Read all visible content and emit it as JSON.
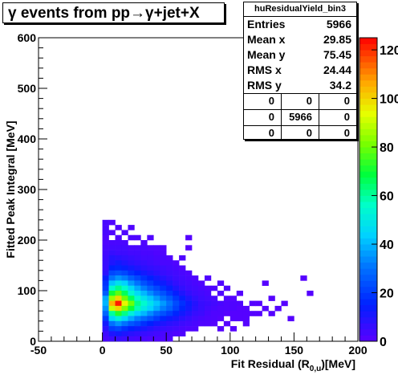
{
  "title": "γ events from pp→γ+jet+X",
  "stats": {
    "name": "huResidualYield_bin3",
    "rows": [
      {
        "label": "Entries",
        "value": "5966"
      },
      {
        "label": "Mean x",
        "value": "29.85"
      },
      {
        "label": "Mean y",
        "value": "75.45"
      },
      {
        "label": "RMS x",
        "value": "24.44"
      },
      {
        "label": "RMS y",
        "value": "34.2"
      }
    ],
    "grid": [
      [
        "0",
        "0",
        "0"
      ],
      [
        "0",
        "5966",
        "0"
      ],
      [
        "0",
        "0",
        "0"
      ]
    ]
  },
  "chart_data": {
    "type": "heatmap",
    "title": "γ events from pp→γ+jet+X",
    "xlabel": "Fit Residual (R0,u)[MeV]",
    "ylabel": "Fitted Peak Integral [MeV]",
    "xlim": [
      -50,
      200
    ],
    "ylim": [
      0,
      600
    ],
    "x_ticks": [
      -50,
      0,
      50,
      100,
      150,
      200
    ],
    "y_ticks": [
      0,
      100,
      200,
      300,
      400,
      500,
      600
    ],
    "zlim": [
      0,
      125
    ],
    "z_ticks": [
      0,
      20,
      40,
      60,
      80,
      100,
      120
    ],
    "bin_width_x": 5,
    "bin_width_y": 10,
    "bins": [
      [
        0,
        230,
        3
      ],
      [
        0,
        220,
        3
      ],
      [
        0,
        210,
        3
      ],
      [
        0,
        200,
        2
      ],
      [
        0,
        190,
        2
      ],
      [
        0,
        180,
        3
      ],
      [
        0,
        170,
        4
      ],
      [
        0,
        160,
        5
      ],
      [
        0,
        150,
        6
      ],
      [
        0,
        140,
        6
      ],
      [
        0,
        130,
        8
      ],
      [
        0,
        120,
        14
      ],
      [
        0,
        110,
        18
      ],
      [
        0,
        100,
        20
      ],
      [
        0,
        90,
        26
      ],
      [
        0,
        80,
        38
      ],
      [
        0,
        70,
        40
      ],
      [
        0,
        60,
        35
      ],
      [
        0,
        50,
        28
      ],
      [
        0,
        40,
        20
      ],
      [
        0,
        30,
        12
      ],
      [
        0,
        20,
        8
      ],
      [
        0,
        10,
        5
      ],
      [
        0,
        0,
        3
      ],
      [
        5,
        230,
        2
      ],
      [
        5,
        210,
        2
      ],
      [
        5,
        190,
        3
      ],
      [
        5,
        180,
        4
      ],
      [
        5,
        170,
        6
      ],
      [
        5,
        160,
        9
      ],
      [
        5,
        150,
        10
      ],
      [
        5,
        140,
        15
      ],
      [
        5,
        130,
        22
      ],
      [
        5,
        120,
        30
      ],
      [
        5,
        110,
        42
      ],
      [
        5,
        100,
        55
      ],
      [
        5,
        90,
        70
      ],
      [
        5,
        80,
        85
      ],
      [
        5,
        70,
        105
      ],
      [
        5,
        60,
        90
      ],
      [
        5,
        50,
        60
      ],
      [
        5,
        40,
        45
      ],
      [
        5,
        30,
        30
      ],
      [
        5,
        20,
        20
      ],
      [
        5,
        10,
        10
      ],
      [
        5,
        0,
        5
      ],
      [
        10,
        220,
        2
      ],
      [
        10,
        200,
        2
      ],
      [
        10,
        190,
        3
      ],
      [
        10,
        180,
        4
      ],
      [
        10,
        170,
        5
      ],
      [
        10,
        160,
        8
      ],
      [
        10,
        150,
        12
      ],
      [
        10,
        140,
        16
      ],
      [
        10,
        130,
        24
      ],
      [
        10,
        120,
        35
      ],
      [
        10,
        110,
        48
      ],
      [
        10,
        100,
        62
      ],
      [
        10,
        90,
        78
      ],
      [
        10,
        80,
        100
      ],
      [
        10,
        70,
        122
      ],
      [
        10,
        60,
        100
      ],
      [
        10,
        50,
        72
      ],
      [
        10,
        40,
        52
      ],
      [
        10,
        30,
        35
      ],
      [
        10,
        20,
        22
      ],
      [
        10,
        10,
        12
      ],
      [
        10,
        0,
        6
      ],
      [
        15,
        210,
        2
      ],
      [
        15,
        190,
        3
      ],
      [
        15,
        180,
        4
      ],
      [
        15,
        170,
        5
      ],
      [
        15,
        160,
        7
      ],
      [
        15,
        150,
        10
      ],
      [
        15,
        140,
        14
      ],
      [
        15,
        130,
        22
      ],
      [
        15,
        120,
        32
      ],
      [
        15,
        110,
        44
      ],
      [
        15,
        100,
        56
      ],
      [
        15,
        90,
        66
      ],
      [
        15,
        80,
        80
      ],
      [
        15,
        70,
        95
      ],
      [
        15,
        60,
        82
      ],
      [
        15,
        50,
        62
      ],
      [
        15,
        40,
        45
      ],
      [
        15,
        30,
        30
      ],
      [
        15,
        20,
        18
      ],
      [
        15,
        10,
        10
      ],
      [
        15,
        0,
        5
      ],
      [
        20,
        220,
        2
      ],
      [
        20,
        200,
        2
      ],
      [
        20,
        180,
        3
      ],
      [
        20,
        170,
        4
      ],
      [
        20,
        160,
        6
      ],
      [
        20,
        150,
        8
      ],
      [
        20,
        140,
        12
      ],
      [
        20,
        130,
        18
      ],
      [
        20,
        120,
        26
      ],
      [
        20,
        110,
        36
      ],
      [
        20,
        100,
        46
      ],
      [
        20,
        90,
        54
      ],
      [
        20,
        80,
        66
      ],
      [
        20,
        70,
        80
      ],
      [
        20,
        60,
        70
      ],
      [
        20,
        50,
        52
      ],
      [
        20,
        40,
        38
      ],
      [
        20,
        30,
        25
      ],
      [
        20,
        20,
        15
      ],
      [
        20,
        10,
        8
      ],
      [
        20,
        0,
        4
      ],
      [
        25,
        200,
        2
      ],
      [
        25,
        180,
        3
      ],
      [
        25,
        170,
        4
      ],
      [
        25,
        160,
        5
      ],
      [
        25,
        150,
        7
      ],
      [
        25,
        140,
        10
      ],
      [
        25,
        130,
        15
      ],
      [
        25,
        120,
        22
      ],
      [
        25,
        110,
        30
      ],
      [
        25,
        100,
        38
      ],
      [
        25,
        90,
        46
      ],
      [
        25,
        80,
        55
      ],
      [
        25,
        70,
        62
      ],
      [
        25,
        60,
        58
      ],
      [
        25,
        50,
        44
      ],
      [
        25,
        40,
        32
      ],
      [
        25,
        30,
        22
      ],
      [
        25,
        20,
        13
      ],
      [
        25,
        10,
        7
      ],
      [
        25,
        0,
        3
      ],
      [
        30,
        190,
        2
      ],
      [
        30,
        180,
        3
      ],
      [
        30,
        170,
        3
      ],
      [
        30,
        160,
        4
      ],
      [
        30,
        150,
        6
      ],
      [
        30,
        140,
        8
      ],
      [
        30,
        130,
        12
      ],
      [
        30,
        120,
        18
      ],
      [
        30,
        110,
        24
      ],
      [
        30,
        100,
        32
      ],
      [
        30,
        90,
        40
      ],
      [
        30,
        80,
        48
      ],
      [
        30,
        70,
        55
      ],
      [
        30,
        60,
        50
      ],
      [
        30,
        50,
        40
      ],
      [
        30,
        40,
        28
      ],
      [
        30,
        30,
        18
      ],
      [
        30,
        20,
        11
      ],
      [
        30,
        10,
        6
      ],
      [
        30,
        0,
        3
      ],
      [
        35,
        200,
        2
      ],
      [
        35,
        180,
        2
      ],
      [
        35,
        170,
        3
      ],
      [
        35,
        160,
        4
      ],
      [
        35,
        150,
        5
      ],
      [
        35,
        140,
        7
      ],
      [
        35,
        130,
        10
      ],
      [
        35,
        120,
        15
      ],
      [
        35,
        110,
        20
      ],
      [
        35,
        100,
        26
      ],
      [
        35,
        90,
        34
      ],
      [
        35,
        80,
        42
      ],
      [
        35,
        70,
        48
      ],
      [
        35,
        60,
        44
      ],
      [
        35,
        50,
        34
      ],
      [
        35,
        40,
        24
      ],
      [
        35,
        30,
        15
      ],
      [
        35,
        20,
        9
      ],
      [
        35,
        10,
        5
      ],
      [
        35,
        0,
        2
      ],
      [
        40,
        180,
        2
      ],
      [
        40,
        170,
        2
      ],
      [
        40,
        160,
        3
      ],
      [
        40,
        150,
        4
      ],
      [
        40,
        140,
        6
      ],
      [
        40,
        130,
        8
      ],
      [
        40,
        120,
        12
      ],
      [
        40,
        110,
        16
      ],
      [
        40,
        100,
        22
      ],
      [
        40,
        90,
        28
      ],
      [
        40,
        80,
        36
      ],
      [
        40,
        70,
        42
      ],
      [
        40,
        60,
        38
      ],
      [
        40,
        50,
        28
      ],
      [
        40,
        40,
        20
      ],
      [
        40,
        30,
        12
      ],
      [
        40,
        20,
        7
      ],
      [
        40,
        10,
        4
      ],
      [
        40,
        0,
        2
      ],
      [
        45,
        180,
        2
      ],
      [
        45,
        170,
        2
      ],
      [
        45,
        160,
        3
      ],
      [
        45,
        150,
        3
      ],
      [
        45,
        140,
        5
      ],
      [
        45,
        130,
        6
      ],
      [
        45,
        120,
        9
      ],
      [
        45,
        110,
        13
      ],
      [
        45,
        100,
        18
      ],
      [
        45,
        90,
        24
      ],
      [
        45,
        80,
        30
      ],
      [
        45,
        70,
        36
      ],
      [
        45,
        60,
        32
      ],
      [
        45,
        50,
        24
      ],
      [
        45,
        40,
        16
      ],
      [
        45,
        30,
        10
      ],
      [
        45,
        20,
        6
      ],
      [
        45,
        10,
        3
      ],
      [
        45,
        0,
        2
      ],
      [
        50,
        160,
        2
      ],
      [
        50,
        150,
        3
      ],
      [
        50,
        140,
        4
      ],
      [
        50,
        130,
        5
      ],
      [
        50,
        120,
        7
      ],
      [
        50,
        110,
        10
      ],
      [
        50,
        100,
        14
      ],
      [
        50,
        90,
        19
      ],
      [
        50,
        80,
        25
      ],
      [
        50,
        70,
        30
      ],
      [
        50,
        60,
        27
      ],
      [
        50,
        50,
        20
      ],
      [
        50,
        40,
        13
      ],
      [
        50,
        30,
        8
      ],
      [
        50,
        20,
        5
      ],
      [
        50,
        10,
        3
      ],
      [
        50,
        0,
        2
      ],
      [
        55,
        150,
        2
      ],
      [
        55,
        140,
        3
      ],
      [
        55,
        130,
        4
      ],
      [
        55,
        120,
        5
      ],
      [
        55,
        110,
        7
      ],
      [
        55,
        100,
        10
      ],
      [
        55,
        90,
        14
      ],
      [
        55,
        80,
        19
      ],
      [
        55,
        70,
        23
      ],
      [
        55,
        60,
        21
      ],
      [
        55,
        50,
        16
      ],
      [
        55,
        40,
        11
      ],
      [
        55,
        30,
        7
      ],
      [
        55,
        20,
        4
      ],
      [
        55,
        10,
        2
      ],
      [
        60,
        160,
        2
      ],
      [
        60,
        140,
        2
      ],
      [
        60,
        130,
        3
      ],
      [
        60,
        120,
        4
      ],
      [
        60,
        110,
        5
      ],
      [
        60,
        100,
        7
      ],
      [
        60,
        90,
        10
      ],
      [
        60,
        80,
        14
      ],
      [
        60,
        70,
        18
      ],
      [
        60,
        60,
        16
      ],
      [
        60,
        50,
        12
      ],
      [
        60,
        40,
        8
      ],
      [
        60,
        30,
        5
      ],
      [
        60,
        20,
        3
      ],
      [
        60,
        10,
        2
      ],
      [
        65,
        200,
        1
      ],
      [
        65,
        180,
        1
      ],
      [
        65,
        130,
        2
      ],
      [
        65,
        120,
        3
      ],
      [
        65,
        110,
        4
      ],
      [
        65,
        100,
        5
      ],
      [
        65,
        90,
        7
      ],
      [
        65,
        80,
        10
      ],
      [
        65,
        70,
        13
      ],
      [
        65,
        60,
        12
      ],
      [
        65,
        50,
        9
      ],
      [
        65,
        40,
        6
      ],
      [
        65,
        30,
        4
      ],
      [
        65,
        20,
        2
      ],
      [
        70,
        120,
        2
      ],
      [
        70,
        110,
        3
      ],
      [
        70,
        100,
        4
      ],
      [
        70,
        90,
        5
      ],
      [
        70,
        80,
        7
      ],
      [
        70,
        70,
        9
      ],
      [
        70,
        60,
        8
      ],
      [
        70,
        50,
        6
      ],
      [
        70,
        40,
        4
      ],
      [
        70,
        30,
        3
      ],
      [
        70,
        20,
        2
      ],
      [
        75,
        110,
        2
      ],
      [
        75,
        100,
        3
      ],
      [
        75,
        90,
        4
      ],
      [
        75,
        80,
        5
      ],
      [
        75,
        70,
        6
      ],
      [
        75,
        60,
        6
      ],
      [
        75,
        50,
        5
      ],
      [
        75,
        40,
        3
      ],
      [
        75,
        30,
        2
      ],
      [
        80,
        120,
        2
      ],
      [
        80,
        100,
        2
      ],
      [
        80,
        90,
        3
      ],
      [
        80,
        80,
        4
      ],
      [
        80,
        70,
        5
      ],
      [
        80,
        60,
        4
      ],
      [
        80,
        50,
        3
      ],
      [
        80,
        40,
        2
      ],
      [
        80,
        30,
        2
      ],
      [
        85,
        100,
        2
      ],
      [
        85,
        80,
        3
      ],
      [
        85,
        70,
        4
      ],
      [
        85,
        60,
        3
      ],
      [
        85,
        50,
        2
      ],
      [
        85,
        40,
        2
      ],
      [
        85,
        30,
        1
      ],
      [
        90,
        110,
        2
      ],
      [
        90,
        90,
        2
      ],
      [
        90,
        70,
        3
      ],
      [
        90,
        60,
        2
      ],
      [
        90,
        50,
        2
      ],
      [
        90,
        40,
        1
      ],
      [
        90,
        20,
        1
      ],
      [
        95,
        100,
        2
      ],
      [
        95,
        80,
        2
      ],
      [
        95,
        70,
        2
      ],
      [
        95,
        60,
        2
      ],
      [
        95,
        50,
        1
      ],
      [
        95,
        30,
        1
      ],
      [
        100,
        80,
        1
      ],
      [
        100,
        70,
        2
      ],
      [
        100,
        60,
        2
      ],
      [
        100,
        50,
        1
      ],
      [
        100,
        40,
        1
      ],
      [
        100,
        20,
        1
      ],
      [
        105,
        90,
        1
      ],
      [
        105,
        70,
        2
      ],
      [
        105,
        60,
        1
      ],
      [
        105,
        50,
        1
      ],
      [
        105,
        40,
        1
      ],
      [
        110,
        60,
        1
      ],
      [
        110,
        50,
        1
      ],
      [
        110,
        40,
        1
      ],
      [
        110,
        30,
        1
      ],
      [
        115,
        70,
        1
      ],
      [
        115,
        50,
        1
      ],
      [
        120,
        70,
        1
      ],
      [
        120,
        50,
        1
      ],
      [
        125,
        110,
        1
      ],
      [
        125,
        60,
        1
      ],
      [
        130,
        80,
        1
      ],
      [
        130,
        50,
        1
      ],
      [
        135,
        60,
        1
      ],
      [
        140,
        70,
        1
      ],
      [
        145,
        40,
        1
      ],
      [
        155,
        120,
        1
      ],
      [
        160,
        90,
        1
      ]
    ]
  }
}
